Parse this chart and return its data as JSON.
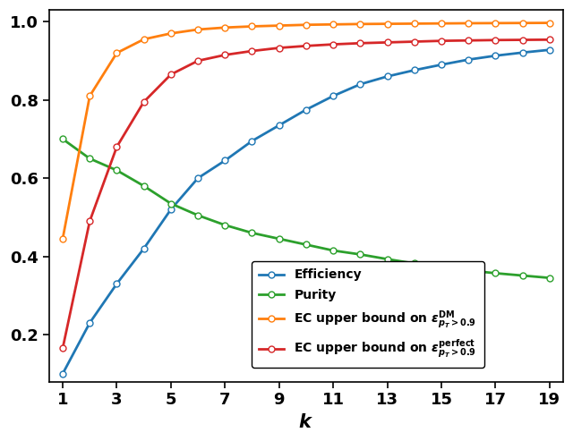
{
  "k": [
    1,
    2,
    3,
    4,
    5,
    6,
    7,
    8,
    9,
    10,
    11,
    12,
    13,
    14,
    15,
    16,
    17,
    18,
    19
  ],
  "efficiency": [
    0.1,
    0.23,
    0.33,
    0.42,
    0.52,
    0.6,
    0.645,
    0.695,
    0.735,
    0.775,
    0.81,
    0.84,
    0.86,
    0.876,
    0.89,
    0.903,
    0.913,
    0.921,
    0.928
  ],
  "purity": [
    0.7,
    0.65,
    0.62,
    0.58,
    0.535,
    0.505,
    0.48,
    0.46,
    0.445,
    0.43,
    0.415,
    0.405,
    0.393,
    0.382,
    0.373,
    0.364,
    0.357,
    0.351,
    0.345
  ],
  "ec_dm": [
    0.445,
    0.81,
    0.92,
    0.955,
    0.97,
    0.98,
    0.985,
    0.988,
    0.99,
    0.992,
    0.993,
    0.994,
    0.9945,
    0.995,
    0.9955,
    0.996,
    0.9963,
    0.9966,
    0.9969
  ],
  "ec_perfect": [
    0.165,
    0.49,
    0.68,
    0.795,
    0.865,
    0.9,
    0.915,
    0.925,
    0.933,
    0.938,
    0.942,
    0.945,
    0.947,
    0.949,
    0.951,
    0.952,
    0.953,
    0.9535,
    0.954
  ],
  "color_efficiency": "#1f77b4",
  "color_purity": "#2ca02c",
  "color_ec_dm": "#ff7f0e",
  "color_ec_perfect": "#d62728",
  "xlabel": "$k$",
  "xlim_lo": 0.5,
  "xlim_hi": 19.5,
  "ylim_lo": 0.08,
  "ylim_hi": 1.03,
  "xticks": [
    1,
    3,
    5,
    7,
    9,
    11,
    13,
    15,
    17,
    19
  ],
  "yticks": [
    0.2,
    0.4,
    0.6,
    0.8,
    1.0
  ],
  "legend_efficiency": "Efficiency",
  "legend_purity": "Purity",
  "legend_ec_dm": "EC upper bound on $\\varepsilon^{\\mathrm{DM}}_{p_T > 0.9}$",
  "legend_ec_perfect": "EC upper bound on $\\varepsilon^{\\mathrm{perfect}}_{p_T > 0.9}$",
  "marker": "o",
  "markersize": 5,
  "linewidth": 2.0,
  "background_color": "#ffffff",
  "font_size_ticks": 13,
  "font_size_xlabel": 15,
  "font_size_legend": 10
}
